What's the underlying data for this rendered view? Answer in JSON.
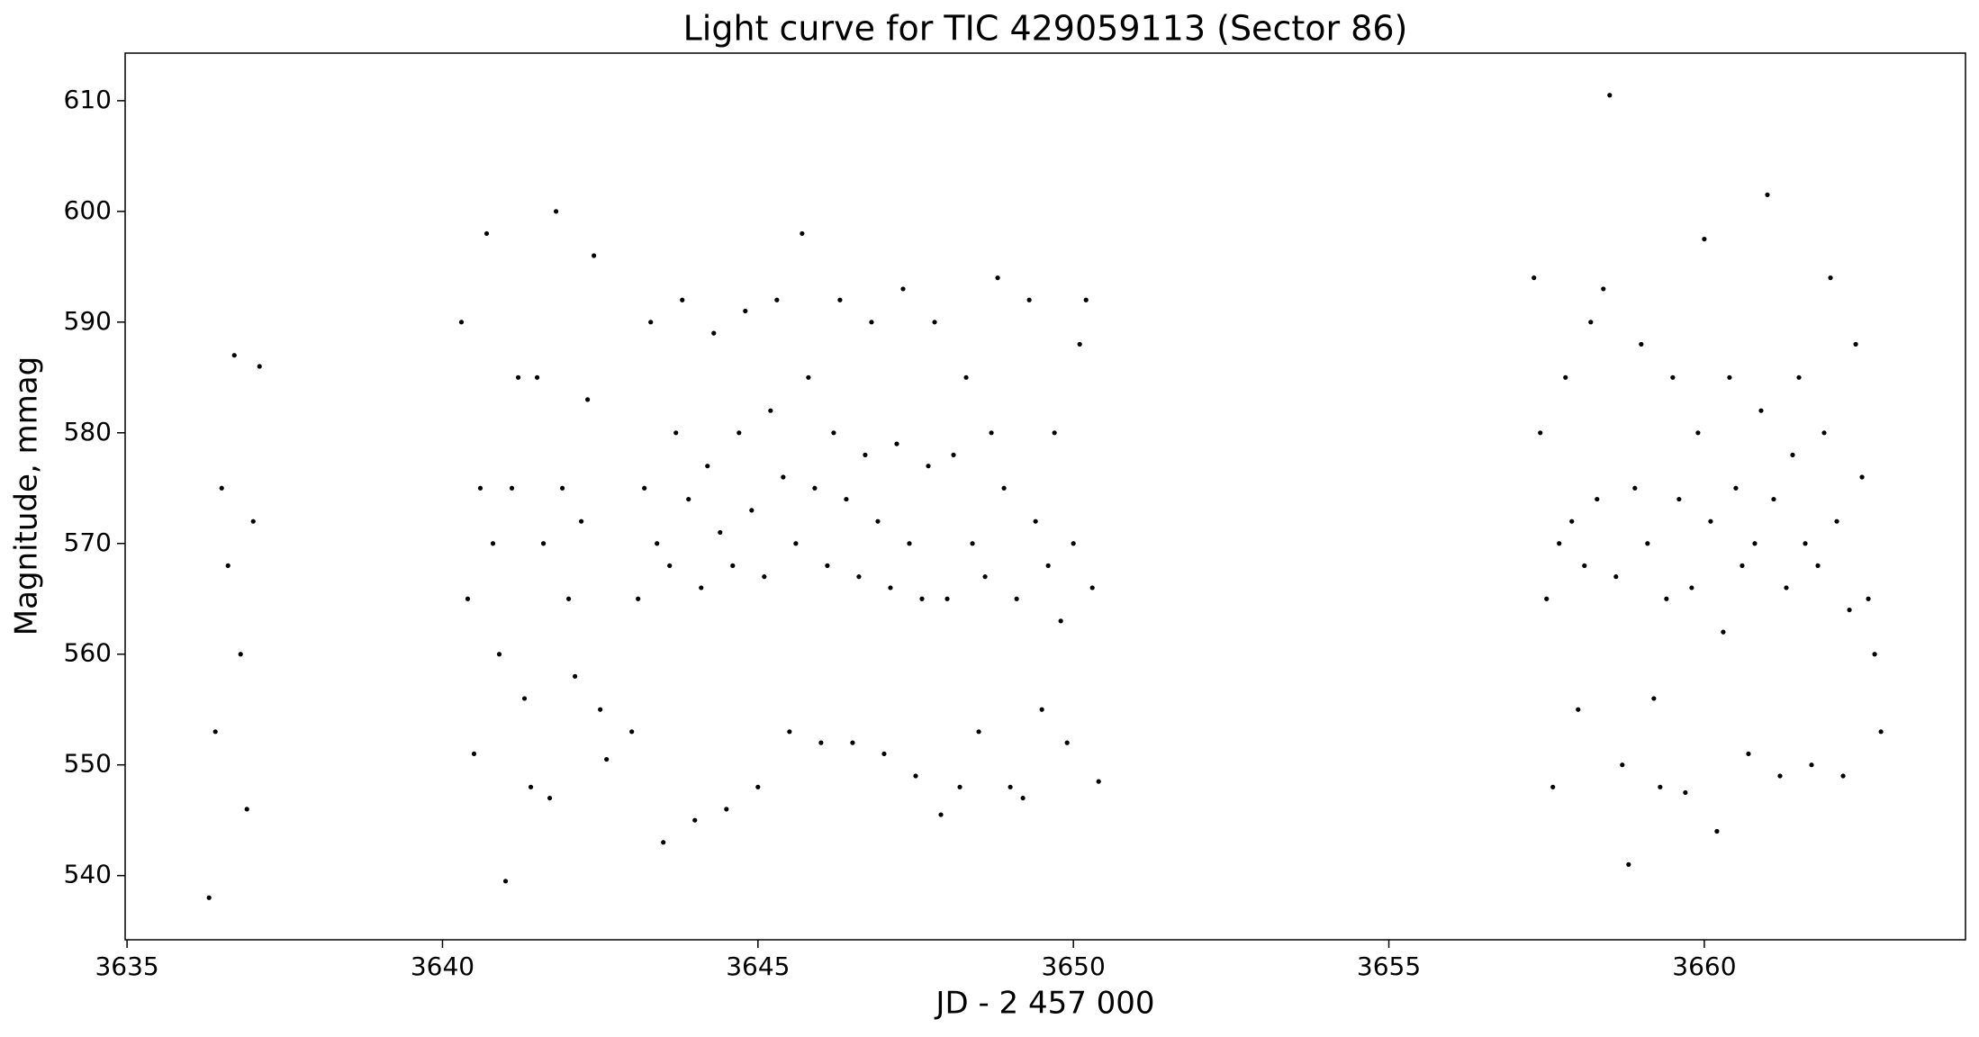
{
  "chart_data": {
    "type": "scatter",
    "title": "Light curve for TIC 429059113 (Sector 86)",
    "x_label": "JD - 2 457 000",
    "y_label": "Magnitude, mmag",
    "color": "#000000",
    "xlim": [
      3634.97,
      3664.14
    ],
    "ylim": [
      534.2,
      614.3
    ],
    "xticks": [
      3635,
      3640,
      3645,
      3650,
      3655,
      3660
    ],
    "yticks": [
      540,
      550,
      560,
      570,
      580,
      590,
      600,
      610
    ],
    "x": [
      3636.3,
      3636.4,
      3636.5,
      3636.6,
      3636.7,
      3636.8,
      3636.9,
      3637.0,
      3637.1,
      3640.3,
      3640.4,
      3640.5,
      3640.6,
      3640.7,
      3640.8,
      3640.9,
      3641.0,
      3641.1,
      3641.2,
      3641.3,
      3641.4,
      3641.5,
      3641.6,
      3641.7,
      3641.8,
      3641.9,
      3642.0,
      3642.1,
      3642.2,
      3642.3,
      3642.4,
      3642.5,
      3642.6,
      3643.0,
      3643.1,
      3643.2,
      3643.3,
      3643.4,
      3643.5,
      3643.6,
      3643.7,
      3643.8,
      3643.9,
      3644.0,
      3644.1,
      3644.2,
      3644.3,
      3644.4,
      3644.5,
      3644.6,
      3644.7,
      3644.8,
      3644.9,
      3645.0,
      3645.1,
      3645.2,
      3645.3,
      3645.4,
      3645.5,
      3645.6,
      3645.7,
      3645.8,
      3645.9,
      3646.0,
      3646.1,
      3646.2,
      3646.3,
      3646.4,
      3646.5,
      3646.6,
      3646.7,
      3646.8,
      3646.9,
      3647.0,
      3647.1,
      3647.2,
      3647.3,
      3647.4,
      3647.5,
      3647.6,
      3647.7,
      3647.8,
      3647.9,
      3648.0,
      3648.1,
      3648.2,
      3648.3,
      3648.4,
      3648.5,
      3648.6,
      3648.7,
      3648.8,
      3648.9,
      3649.0,
      3649.1,
      3649.2,
      3649.3,
      3649.4,
      3649.5,
      3649.6,
      3649.7,
      3649.8,
      3649.9,
      3650.0,
      3650.1,
      3650.2,
      3650.3,
      3650.4,
      3657.3,
      3657.4,
      3657.5,
      3657.6,
      3657.7,
      3657.8,
      3657.9,
      3658.0,
      3658.1,
      3658.2,
      3658.3,
      3658.4,
      3658.5,
      3658.6,
      3658.7,
      3658.8,
      3658.9,
      3659.0,
      3659.1,
      3659.2,
      3659.3,
      3659.4,
      3659.5,
      3659.6,
      3659.7,
      3659.8,
      3659.9,
      3660.0,
      3660.1,
      3660.2,
      3660.3,
      3660.4,
      3660.5,
      3660.6,
      3660.7,
      3660.8,
      3660.9,
      3661.0,
      3661.1,
      3661.2,
      3661.3,
      3661.4,
      3661.5,
      3661.6,
      3661.7,
      3661.8,
      3661.9,
      3662.0,
      3662.1,
      3662.2,
      3662.3,
      3662.4,
      3662.5,
      3662.6,
      3662.7,
      3662.8
    ],
    "values": [
      538,
      553,
      575,
      568,
      587,
      560,
      546,
      572,
      586,
      590,
      565,
      551,
      575,
      598,
      570,
      560,
      539.5,
      575,
      585,
      556,
      548,
      585,
      570,
      547,
      600,
      575,
      565,
      558,
      572,
      583,
      596,
      555,
      550.5,
      553,
      565,
      575,
      590,
      570,
      543,
      568,
      580,
      592,
      574,
      545,
      566,
      577,
      589,
      571,
      546,
      568,
      580,
      591,
      573,
      548,
      567,
      582,
      592,
      576,
      553,
      570,
      598,
      585,
      575,
      552,
      568,
      580,
      592,
      574,
      552,
      567,
      578,
      590,
      572,
      551,
      566,
      579,
      593,
      570,
      549,
      565,
      577,
      590,
      545.5,
      565,
      578,
      548,
      585,
      570,
      553,
      567,
      580,
      594,
      575,
      548,
      565,
      547,
      592,
      572,
      555,
      568,
      580,
      563,
      552,
      570,
      588,
      592,
      566,
      548.5,
      594,
      580,
      565,
      548,
      570,
      585,
      572,
      555,
      568,
      590,
      574,
      593,
      610.5,
      567,
      550,
      541,
      575,
      588,
      570,
      556,
      548,
      565,
      585,
      574,
      547.5,
      566,
      580,
      597.5,
      572,
      544,
      562,
      585,
      575,
      568,
      551,
      570,
      582,
      601.5,
      574,
      549,
      566,
      578,
      585,
      570,
      550,
      568,
      580,
      594,
      572,
      549,
      564,
      588,
      576,
      565,
      560,
      553
    ]
  }
}
